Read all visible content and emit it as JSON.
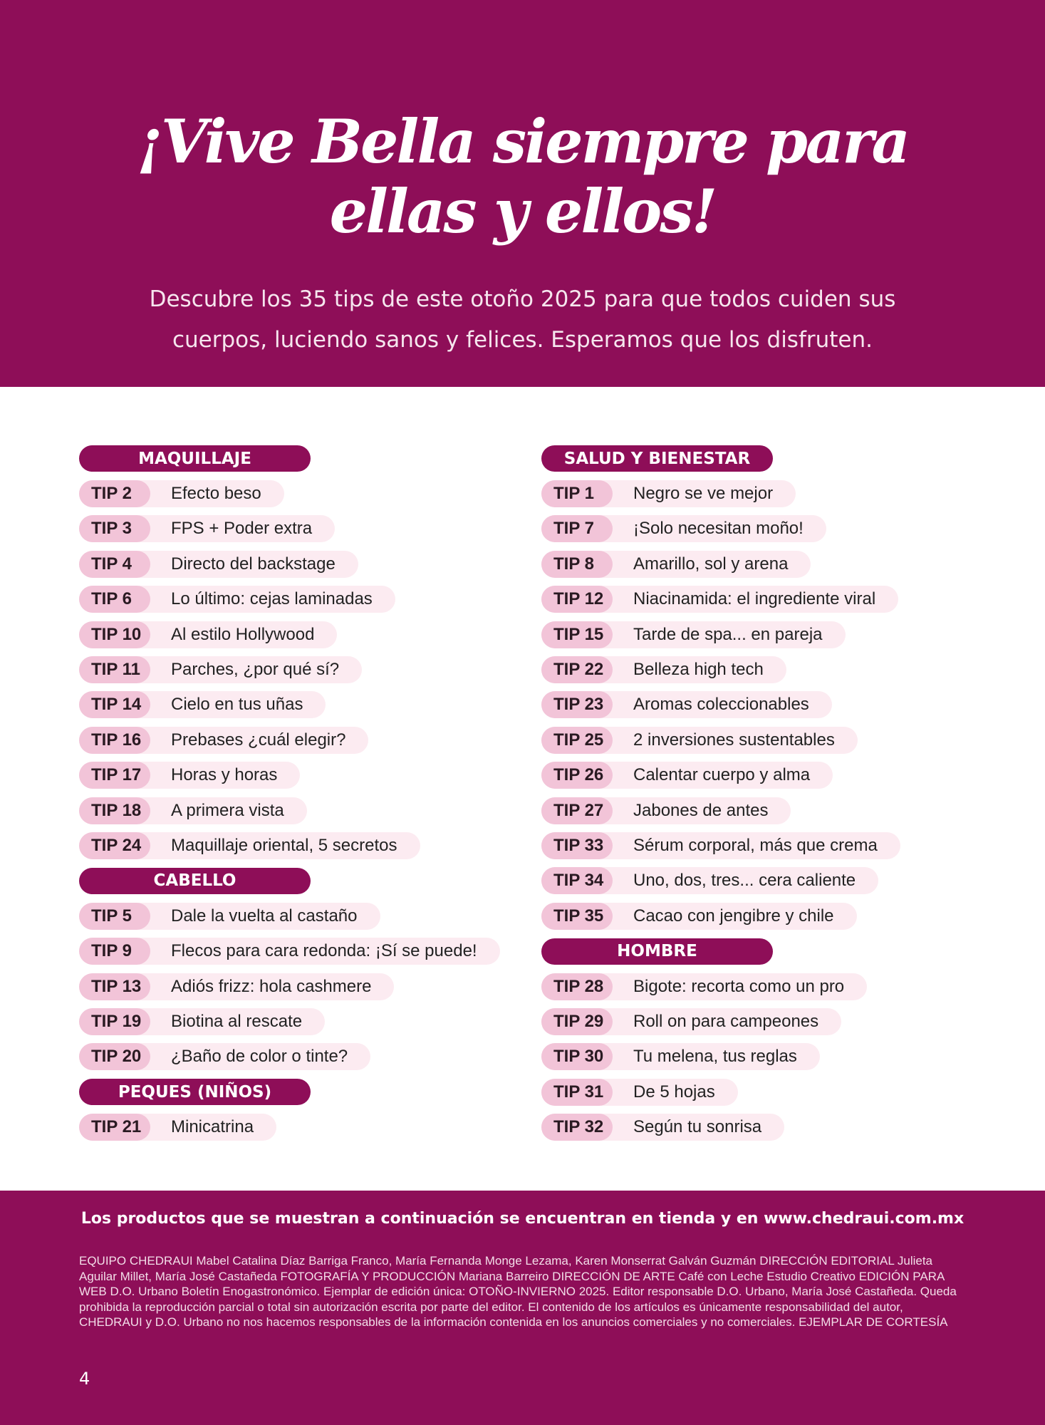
{
  "header": {
    "title_line1": "¡Vive Bella siempre para",
    "title_line2": "ellas y ellos!",
    "subtitle_line1": "Descubre los 35 tips de este otoño 2025 para que todos cuiden sus",
    "subtitle_line2": "cuerpos, luciendo sanos y felices. Esperamos que los disfruten."
  },
  "colors": {
    "brand": "#8e0e58",
    "tip_pill": "#f2c4d8",
    "row_bg": "#fcebf1"
  },
  "left_column": [
    {
      "section": "MAQUILLAJE",
      "tips": [
        [
          "TIP 2",
          "Efecto beso"
        ],
        [
          "TIP 3",
          "FPS + Poder extra"
        ],
        [
          "TIP 4",
          "Directo del backstage"
        ],
        [
          "TIP 6",
          "Lo último: cejas laminadas"
        ],
        [
          "TIP 10",
          "Al estilo Hollywood"
        ],
        [
          "TIP 11",
          "Parches, ¿por qué sí?"
        ],
        [
          "TIP 14",
          "Cielo en tus uñas"
        ],
        [
          "TIP 16",
          "Prebases ¿cuál elegir?"
        ],
        [
          "TIP 17",
          "Horas y horas"
        ],
        [
          "TIP 18",
          "A primera vista"
        ],
        [
          "TIP 24",
          "Maquillaje oriental, 5 secretos"
        ]
      ]
    },
    {
      "section": "CABELLO",
      "tips": [
        [
          "TIP 5",
          "Dale la vuelta al castaño"
        ],
        [
          "TIP 9",
          "Flecos para cara redonda: ¡Sí se puede!"
        ],
        [
          "TIP 13",
          "Adiós frizz: hola cashmere"
        ],
        [
          "TIP 19",
          "Biotina al rescate"
        ],
        [
          "TIP 20",
          "¿Baño de color o tinte?"
        ]
      ]
    },
    {
      "section": "PEQUES (NIÑOS)",
      "tips": [
        [
          "TIP 21",
          "Minicatrina"
        ]
      ]
    }
  ],
  "right_column": [
    {
      "section": "SALUD Y BIENESTAR",
      "tips": [
        [
          "TIP 1",
          "Negro se ve mejor"
        ],
        [
          "TIP 7",
          "¡Solo necesitan moño!"
        ],
        [
          "TIP 8",
          "Amarillo, sol y arena"
        ],
        [
          "TIP 12",
          "Niacinamida: el ingrediente viral"
        ],
        [
          "TIP 15",
          "Tarde de spa... en pareja"
        ],
        [
          "TIP 22",
          "Belleza high tech"
        ],
        [
          "TIP 23",
          "Aromas coleccionables"
        ],
        [
          "TIP 25",
          "2 inversiones sustentables"
        ],
        [
          "TIP 26",
          "Calentar cuerpo y alma"
        ],
        [
          "TIP 27",
          "Jabones de antes"
        ],
        [
          "TIP 33",
          "Sérum corporal, más que crema"
        ],
        [
          "TIP 34",
          "Uno, dos, tres... cera caliente"
        ],
        [
          "TIP 35",
          "Cacao con jengibre y chile"
        ]
      ]
    },
    {
      "section": "HOMBRE",
      "tips": [
        [
          "TIP 28",
          "Bigote: recorta como un pro"
        ],
        [
          "TIP 29",
          "Roll on para campeones"
        ],
        [
          "TIP 30",
          "Tu melena, tus reglas"
        ],
        [
          "TIP 31",
          "De 5 hojas"
        ],
        [
          "TIP 32",
          "Según tu sonrisa"
        ]
      ]
    }
  ],
  "footer": {
    "lead": "Los productos que se muestran a continuación se encuentran en tienda y en www.chedraui.com.mx",
    "credits": "EQUIPO CHEDRAUI Mabel Catalina Díaz Barriga Franco, María Fernanda Monge Lezama, Karen Monserrat Galván Guzmán DIRECCIÓN EDITORIAL Julieta Aguilar Millet, María José Castañeda FOTOGRAFÍA Y PRODUCCIÓN Mariana Barreiro DIRECCIÓN DE ARTE Café con Leche Estudio Creativo EDICIÓN PARA WEB D.O. Urbano Boletín Enogastronómico. Ejemplar de edición única: OTOÑO-INVIERNO 2025. Editor responsable D.O. Urbano, María José Castañeda. Queda prohibida la reproducción parcial o total sin autorización escrita por parte del editor. El contenido de los artículos es únicamente responsabilidad del autor, CHEDRAUI y D.O. Urbano no nos hacemos responsables de la información contenida en los anuncios comerciales y no comerciales. EJEMPLAR DE CORTESÍA",
    "page_number": "4"
  }
}
